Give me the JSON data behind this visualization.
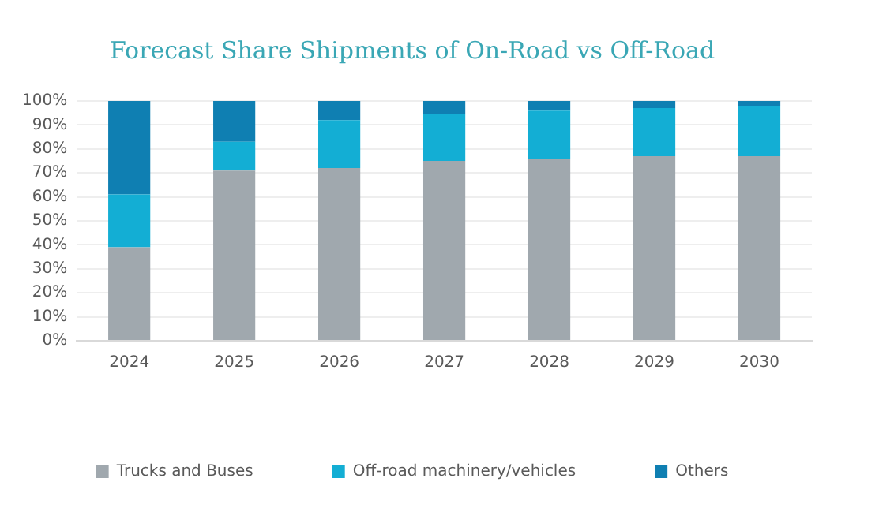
{
  "chart_data": {
    "type": "bar",
    "title": "Forecast Share Shipments of On-Road vs Off-Road",
    "stacked": true,
    "categories": [
      "2024",
      "2025",
      "2026",
      "2027",
      "2028",
      "2029",
      "2030"
    ],
    "series": [
      {
        "name": "Trucks and Buses",
        "color": "#a0a8ae",
        "values": [
          39,
          71,
          72,
          75,
          76,
          77,
          77
        ]
      },
      {
        "name": "Off-road machinery/vehicles",
        "color": "#13aed4",
        "values": [
          22,
          12,
          20,
          19.5,
          20,
          20,
          21
        ]
      },
      {
        "name": "Others",
        "color": "#0f7fb2",
        "values": [
          39,
          17,
          8,
          5.5,
          4,
          3,
          2
        ]
      }
    ],
    "ylim": [
      0,
      100
    ],
    "yticks": [
      {
        "value": 0,
        "label": "0%"
      },
      {
        "value": 10,
        "label": "10%"
      },
      {
        "value": 20,
        "label": "20%"
      },
      {
        "value": 30,
        "label": "30%"
      },
      {
        "value": 40,
        "label": "40%"
      },
      {
        "value": 50,
        "label": "50%"
      },
      {
        "value": 60,
        "label": "60%"
      },
      {
        "value": 70,
        "label": "70%"
      },
      {
        "value": 80,
        "label": "80%"
      },
      {
        "value": 90,
        "label": "90%"
      },
      {
        "value": 100,
        "label": "100%"
      }
    ],
    "grid": "y",
    "legend": "bottom"
  }
}
